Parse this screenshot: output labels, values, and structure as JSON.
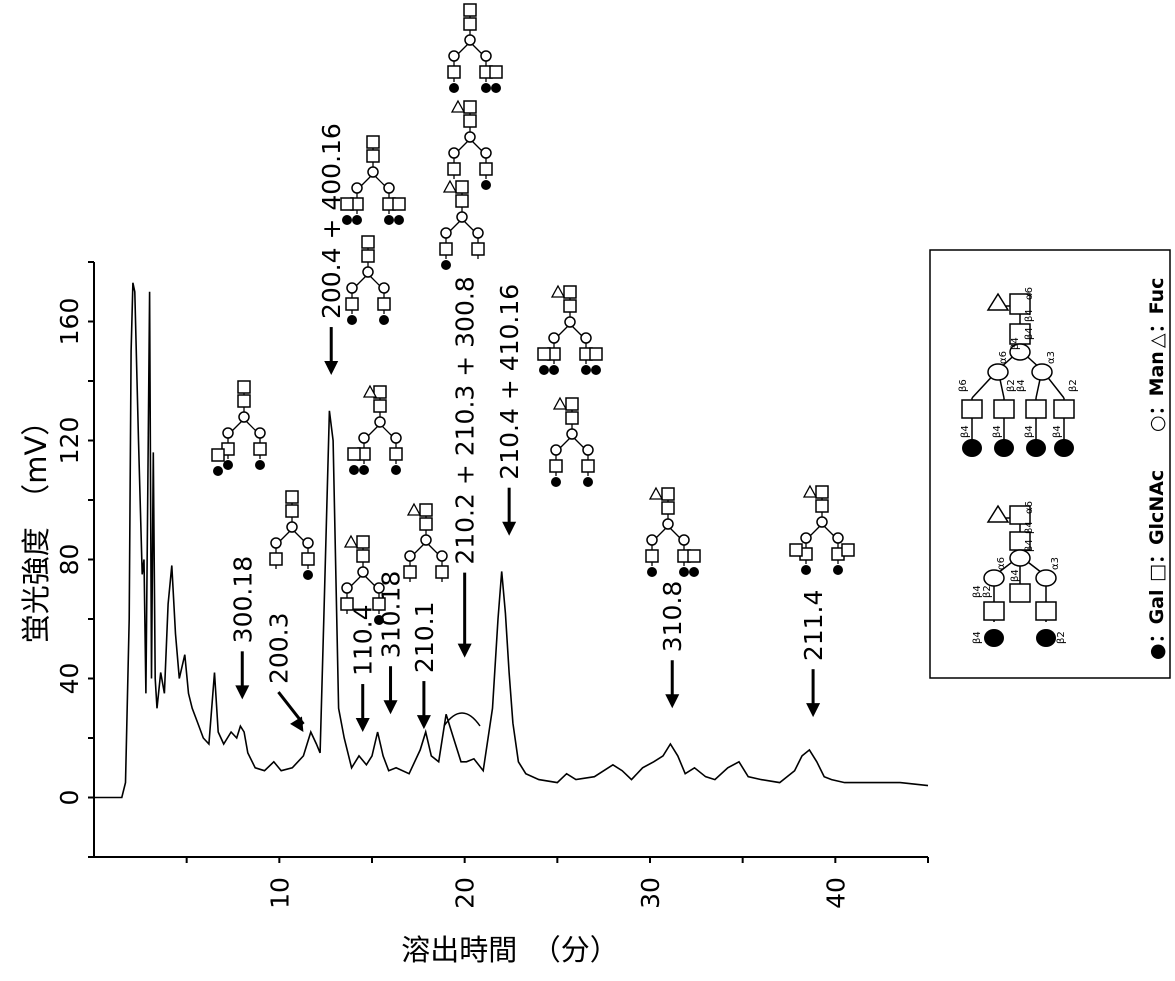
{
  "chart_data": {
    "type": "line",
    "title": "",
    "xlabel": "溶出時間　（分）",
    "ylabel": "蛍光強度　（mV）",
    "xlim": [
      0,
      45
    ],
    "ylim": [
      -20,
      180
    ],
    "xticks": [
      10,
      20,
      30,
      40
    ],
    "yticks": [
      0,
      40,
      80,
      120,
      160
    ],
    "grid": false,
    "series": [
      {
        "x": [
          0.0,
          1.5,
          1.7,
          1.9,
          2.0,
          2.1,
          2.2,
          2.4,
          2.6,
          2.7,
          2.8,
          2.9,
          3.0,
          3.1,
          3.2,
          3.3,
          3.4,
          3.6,
          3.8,
          4.0,
          4.2,
          4.4,
          4.6,
          4.9,
          5.1,
          5.3,
          5.6,
          5.9,
          6.2,
          6.5,
          6.7,
          7.0,
          7.4,
          7.7,
          7.9,
          8.1,
          8.3,
          8.7,
          9.2,
          9.7,
          10.1,
          10.7,
          11.3,
          11.7,
          12.0,
          12.2,
          12.4,
          12.7,
          12.9,
          13.2,
          13.5,
          13.9,
          14.3,
          14.7,
          15.0,
          15.3,
          15.6,
          15.9,
          16.3,
          17.0,
          17.6,
          17.9,
          18.2,
          18.6,
          19.0,
          19.4,
          19.8,
          20.1,
          20.5,
          21.0,
          21.5,
          21.8,
          22.0,
          22.2,
          22.4,
          22.6,
          22.9,
          23.3,
          24.0,
          25.0,
          25.5,
          26.0,
          27.0,
          28.0,
          28.5,
          29.0,
          29.6,
          30.2,
          30.7,
          31.1,
          31.5,
          31.9,
          32.4,
          33.0,
          33.5,
          34.2,
          34.8,
          35.3,
          36.0,
          37.0,
          37.8,
          38.2,
          38.6,
          39.0,
          39.4,
          39.8,
          40.5,
          42.0,
          43.5,
          45.0
        ],
        "y": [
          0,
          0,
          5,
          60,
          150,
          173,
          170,
          120,
          75,
          80,
          35,
          100,
          170,
          40,
          116,
          40,
          30,
          42,
          35,
          65,
          78,
          55,
          40,
          48,
          35,
          30,
          25,
          20,
          18,
          42,
          22,
          18,
          22,
          20,
          24,
          22,
          15,
          10,
          9,
          12,
          9,
          10,
          14,
          22,
          18,
          15,
          60,
          130,
          120,
          30,
          20,
          10,
          14,
          11,
          14,
          22,
          14,
          9,
          10,
          8,
          16,
          22,
          14,
          12,
          28,
          20,
          12,
          12,
          13,
          9,
          30,
          60,
          76,
          62,
          42,
          25,
          12,
          8,
          6,
          5,
          8,
          6,
          7,
          11,
          9,
          6,
          10,
          12,
          14,
          18,
          14,
          8,
          10,
          7,
          6,
          10,
          12,
          7,
          6,
          5,
          9,
          14,
          16,
          12,
          7,
          6,
          5,
          5,
          5,
          4
        ]
      }
    ],
    "annotations": [
      {
        "text": "300.18",
        "x": 8.0,
        "y": 33
      },
      {
        "text": "200.3",
        "x": 11.3,
        "y": 22
      },
      {
        "text": "200.4 + 400.16",
        "x": 12.8,
        "y": 142
      },
      {
        "text": "110.4",
        "x": 14.5,
        "y": 22
      },
      {
        "text": "310.18",
        "x": 16.0,
        "y": 28
      },
      {
        "text": "210.1",
        "x": 17.8,
        "y": 23
      },
      {
        "text": "210.2 + 210.3 + 300.8",
        "x": 20.0,
        "y": 47
      },
      {
        "text": "210.4 + 410.16",
        "x": 22.4,
        "y": 88
      },
      {
        "text": "310.8",
        "x": 31.2,
        "y": 30
      },
      {
        "text": "211.4",
        "x": 38.8,
        "y": 27
      }
    ],
    "legend": {
      "position": "right",
      "labels": [
        "●：Gal",
        "□：GlcNAc",
        "○：Man",
        "△：Fuc"
      ],
      "linkages_top": [
        "α6",
        "β4",
        "β4",
        "α6",
        "α3",
        "β6",
        "β2",
        "β4",
        "β4",
        "β2",
        "β4",
        "β4",
        "β4",
        "β4"
      ],
      "linkages_bottom": [
        "α6",
        "β4",
        "β4",
        "α6",
        "α3",
        "β4",
        "β2",
        "β4",
        "β4",
        "β2"
      ]
    }
  }
}
